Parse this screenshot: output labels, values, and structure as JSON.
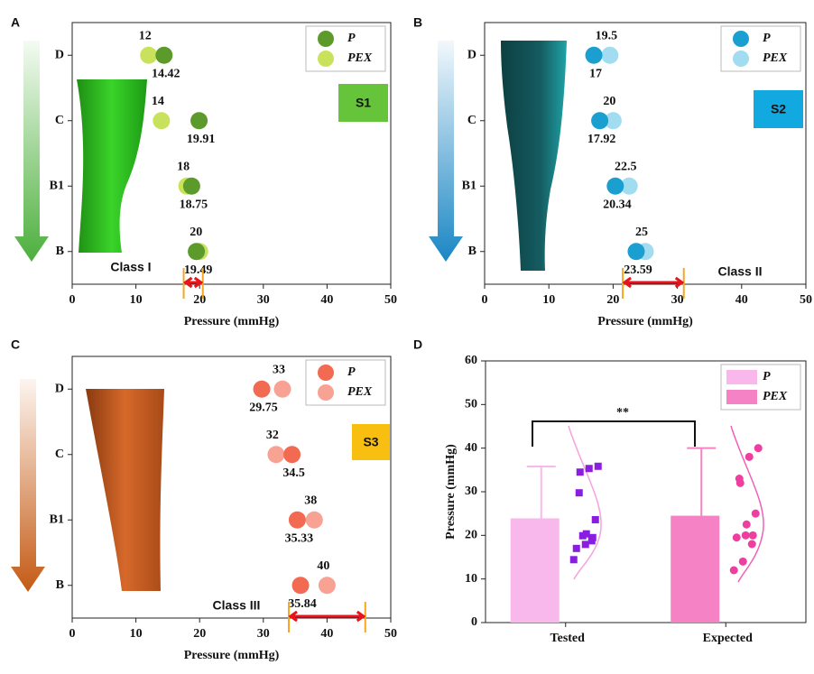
{
  "chart_data": [
    {
      "type": "dot",
      "panel_label": "A",
      "xlabel": "Pressure (mmHg)",
      "xlim": [
        0,
        50
      ],
      "xticks": [
        0,
        10,
        20,
        30,
        40,
        50
      ],
      "categories": [
        "D",
        "C",
        "B1",
        "B"
      ],
      "legend": "upper right",
      "series": [
        {
          "name": "P",
          "color": "#5c9a2c",
          "values": [
            14.42,
            19.91,
            18.75,
            19.49
          ]
        },
        {
          "name": "PEX",
          "color": "#c8e25c",
          "values": [
            12,
            14,
            18,
            20
          ]
        }
      ],
      "badge": "S1",
      "badge_color": "#66c43a",
      "annotation": "Class I",
      "annotation_color": "#22bb44",
      "range": [
        17.5,
        20.5
      ]
    },
    {
      "type": "dot",
      "panel_label": "B",
      "xlabel": "Pressure (mmHg)",
      "xlim": [
        0,
        50
      ],
      "xticks": [
        0,
        10,
        20,
        30,
        40,
        50
      ],
      "categories": [
        "D",
        "C",
        "B1",
        "B"
      ],
      "legend": "upper right",
      "series": [
        {
          "name": "P",
          "color": "#1a9fd0",
          "values": [
            17,
            17.92,
            20.34,
            23.59
          ]
        },
        {
          "name": "PEX",
          "color": "#a2dcf0",
          "values": [
            19.5,
            20,
            22.5,
            25
          ]
        }
      ],
      "badge": "S2",
      "badge_color": "#12a8e0",
      "annotation": "Class II",
      "annotation_color": "#1ab0e8",
      "range": [
        21.5,
        31
      ]
    },
    {
      "type": "dot",
      "panel_label": "C",
      "xlabel": "Pressure (mmHg)",
      "xlim": [
        0,
        50
      ],
      "xticks": [
        0,
        10,
        20,
        30,
        40,
        50
      ],
      "categories": [
        "D",
        "C",
        "B1",
        "B"
      ],
      "legend": "upper right",
      "series": [
        {
          "name": "P",
          "color": "#f26a52",
          "values": [
            29.75,
            34.5,
            35.33,
            35.84
          ]
        },
        {
          "name": "PEX",
          "color": "#f8a294",
          "values": [
            33,
            32,
            38,
            40
          ]
        }
      ],
      "badge": "S3",
      "badge_color": "#f8bf10",
      "annotation": "Class III",
      "annotation_color": "#f07a30",
      "range": [
        34,
        46
      ]
    },
    {
      "type": "bar",
      "panel_label": "D",
      "ylabel": "Pressure (mmHg)",
      "ylim": [
        0,
        60
      ],
      "yticks": [
        0,
        10,
        20,
        30,
        40,
        50,
        60
      ],
      "categories": [
        "Tested",
        "Expected"
      ],
      "legend": "upper right",
      "significance": "**",
      "series": [
        {
          "name": "P",
          "color": "#f8b8ec",
          "values": [
            23.9,
            null
          ],
          "errors": [
            11.9,
            null
          ],
          "point_color": "#8a1ee0",
          "points": [
            14.42,
            19.91,
            18.75,
            19.49,
            17,
            17.92,
            20.34,
            23.59,
            29.75,
            34.5,
            35.33,
            35.84
          ]
        },
        {
          "name": "PEX",
          "color": "#f482c4",
          "values": [
            null,
            24.5
          ],
          "errors": [
            null,
            15.5
          ],
          "point_color": "#ee3ea0",
          "points": [
            12,
            14,
            18,
            20,
            19.5,
            20,
            22.5,
            25,
            33,
            32,
            38,
            40
          ]
        }
      ]
    }
  ]
}
